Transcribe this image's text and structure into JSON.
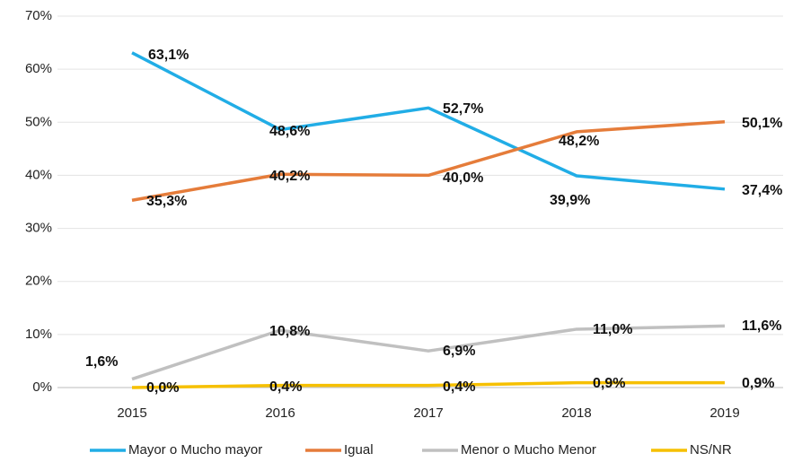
{
  "chart_data": {
    "type": "line",
    "categories": [
      "2015",
      "2016",
      "2017",
      "2018",
      "2019"
    ],
    "series": [
      {
        "name": "Mayor o Mucho mayor",
        "color": "#21ade6",
        "values": [
          63.1,
          48.6,
          52.7,
          39.9,
          37.4
        ],
        "value_labels": [
          "63,1%",
          "48,6%",
          "52,7%",
          "39,9%",
          "37,4%"
        ]
      },
      {
        "name": "Igual",
        "color": "#e57c3a",
        "values": [
          35.3,
          40.2,
          40.0,
          48.2,
          50.1
        ],
        "value_labels": [
          "35,3%",
          "40,2%",
          "40,0%",
          "48,2%",
          "50,1%"
        ]
      },
      {
        "name": "Menor o Mucho Menor",
        "color": "#c0c0c0",
        "values": [
          1.6,
          10.8,
          6.9,
          11.0,
          11.6
        ],
        "value_labels": [
          "1,6%",
          "10,8%",
          "6,9%",
          "11,0%",
          "11,6%"
        ]
      },
      {
        "name": "NS/NR",
        "color": "#f6c000",
        "values": [
          0.0,
          0.4,
          0.4,
          0.9,
          0.9
        ],
        "value_labels": [
          "0,0%",
          "0,4%",
          "0,4%",
          "0,9%",
          "0,9%"
        ]
      }
    ],
    "ylim": [
      0,
      70
    ],
    "yticks": [
      {
        "value": 0,
        "label": "0%"
      },
      {
        "value": 10,
        "label": "10%"
      },
      {
        "value": 20,
        "label": "20%"
      },
      {
        "value": 30,
        "label": "30%"
      },
      {
        "value": 40,
        "label": "40%"
      },
      {
        "value": 50,
        "label": "50%"
      },
      {
        "value": 60,
        "label": "60%"
      },
      {
        "value": 70,
        "label": "70%"
      }
    ],
    "grid": true,
    "legend": "bottom"
  }
}
